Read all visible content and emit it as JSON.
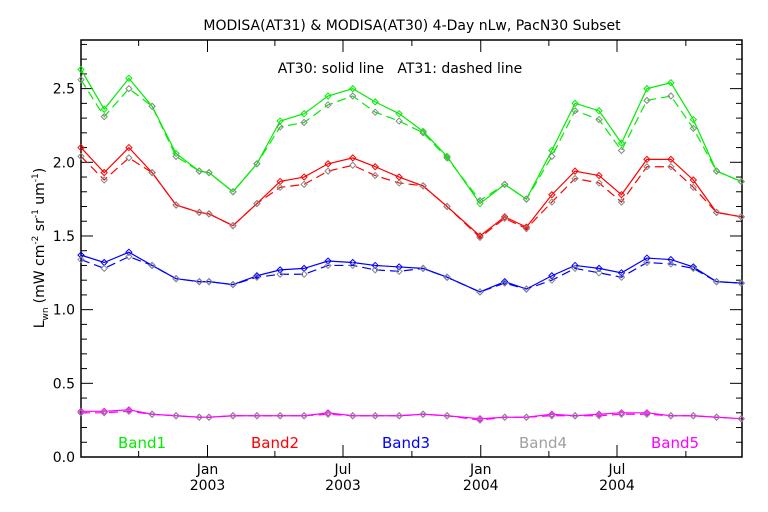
{
  "chart_data": {
    "type": "line",
    "title": "MODISA(AT31) & MODISA(AT30) 4-Day nLw, PacN30 Subset",
    "annotation": "AT30: solid line   AT31: dashed line",
    "ylabel": {
      "main": "L",
      "sub": "wn",
      "units": "(mW cm",
      "sup1": "-2",
      "mid1": " sr",
      "sup2": "-1",
      "mid2": " um",
      "sup3": "-1",
      "close": ")"
    },
    "ylim": [
      0,
      2.83
    ],
    "yticks": [
      "0.0",
      "0.5",
      "1.0",
      "1.5",
      "2.0",
      "2.5"
    ],
    "x_units": "days since 2003-01-01",
    "xlim": [
      -169,
      714
    ],
    "xticks": [
      {
        "day": 0,
        "line1": "Jan",
        "line2": "2003"
      },
      {
        "day": 181,
        "line1": "Jul",
        "line2": "2003"
      },
      {
        "day": 365,
        "line1": "Jan",
        "line2": "2004"
      },
      {
        "day": 547,
        "line1": "Jul",
        "line2": "2004"
      }
    ],
    "minor_xticks_days": [
      -92,
      90,
      273,
      456,
      639
    ],
    "x": [
      -169,
      -138,
      -105,
      -74,
      -42,
      -11,
      2,
      34,
      66,
      97,
      129,
      161,
      194,
      224,
      256,
      288,
      320,
      364,
      397,
      426,
      460,
      491,
      523,
      553,
      587,
      619,
      649,
      680,
      713
    ],
    "legend": [
      {
        "label": "Band1",
        "color": "#00ee00"
      },
      {
        "label": "Band2",
        "color": "#ff0000"
      },
      {
        "label": "Band3",
        "color": "#0000ff"
      },
      {
        "label": "Band4",
        "color": "#a0a0a0"
      },
      {
        "label": "Band5",
        "color": "#ff00ff"
      }
    ],
    "series": [
      {
        "name": "Band1 AT30",
        "color": "#00ee00",
        "style": "solid",
        "values": [
          2.63,
          2.36,
          2.57,
          2.38,
          2.06,
          1.94,
          1.93,
          1.8,
          1.99,
          2.28,
          2.33,
          2.45,
          2.5,
          2.41,
          2.33,
          2.21,
          2.04,
          1.72,
          1.85,
          1.75,
          2.08,
          2.4,
          2.35,
          2.13,
          2.5,
          2.54,
          2.29,
          1.94,
          1.87
        ]
      },
      {
        "name": "Band1 AT31",
        "color": "#00ee00",
        "style": "dashed",
        "values": [
          2.56,
          2.31,
          2.5,
          2.38,
          2.04,
          1.94,
          1.93,
          1.8,
          1.99,
          2.24,
          2.27,
          2.39,
          2.45,
          2.34,
          2.28,
          2.2,
          2.03,
          1.74,
          1.85,
          1.75,
          2.04,
          2.35,
          2.29,
          2.08,
          2.42,
          2.45,
          2.23,
          1.94,
          1.87
        ]
      },
      {
        "name": "Band2 AT30",
        "color": "#ff0000",
        "style": "solid",
        "values": [
          2.1,
          1.93,
          2.1,
          1.93,
          1.71,
          1.66,
          1.65,
          1.57,
          1.72,
          1.87,
          1.9,
          1.99,
          2.03,
          1.97,
          1.9,
          1.84,
          1.7,
          1.5,
          1.63,
          1.56,
          1.78,
          1.94,
          1.91,
          1.78,
          2.02,
          2.02,
          1.88,
          1.66,
          1.63
        ]
      },
      {
        "name": "Band2 AT31",
        "color": "#ff0000",
        "style": "dashed",
        "values": [
          2.04,
          1.88,
          2.03,
          1.93,
          1.71,
          1.66,
          1.65,
          1.57,
          1.72,
          1.83,
          1.85,
          1.94,
          1.98,
          1.91,
          1.86,
          1.84,
          1.7,
          1.49,
          1.62,
          1.55,
          1.73,
          1.89,
          1.86,
          1.73,
          1.97,
          1.97,
          1.83,
          1.66,
          1.63
        ]
      },
      {
        "name": "Band3 AT30",
        "color": "#0000ff",
        "style": "solid",
        "values": [
          1.37,
          1.32,
          1.39,
          1.3,
          1.21,
          1.19,
          1.19,
          1.17,
          1.23,
          1.27,
          1.28,
          1.33,
          1.32,
          1.3,
          1.29,
          1.28,
          1.22,
          1.12,
          1.19,
          1.14,
          1.23,
          1.3,
          1.28,
          1.25,
          1.35,
          1.34,
          1.29,
          1.19,
          1.18
        ]
      },
      {
        "name": "Band3 AT31",
        "color": "#0000ff",
        "style": "dashed",
        "values": [
          1.34,
          1.28,
          1.36,
          1.3,
          1.21,
          1.19,
          1.19,
          1.17,
          1.22,
          1.24,
          1.24,
          1.3,
          1.3,
          1.27,
          1.26,
          1.28,
          1.22,
          1.12,
          1.18,
          1.14,
          1.2,
          1.28,
          1.25,
          1.22,
          1.32,
          1.31,
          1.28,
          1.19,
          1.18
        ]
      },
      {
        "name": "Band5 AT30",
        "color": "#ff00ff",
        "style": "solid",
        "values": [
          0.31,
          0.31,
          0.32,
          0.29,
          0.28,
          0.27,
          0.27,
          0.28,
          0.28,
          0.28,
          0.28,
          0.3,
          0.28,
          0.28,
          0.28,
          0.29,
          0.28,
          0.26,
          0.27,
          0.27,
          0.29,
          0.28,
          0.29,
          0.3,
          0.3,
          0.28,
          0.28,
          0.27,
          0.26
        ]
      },
      {
        "name": "Band5 AT31",
        "color": "#ff00ff",
        "style": "dashed",
        "values": [
          0.3,
          0.3,
          0.31,
          0.29,
          0.28,
          0.27,
          0.27,
          0.28,
          0.28,
          0.28,
          0.28,
          0.29,
          0.28,
          0.28,
          0.28,
          0.29,
          0.28,
          0.25,
          0.27,
          0.27,
          0.28,
          0.28,
          0.28,
          0.29,
          0.29,
          0.28,
          0.28,
          0.27,
          0.26
        ]
      }
    ]
  }
}
